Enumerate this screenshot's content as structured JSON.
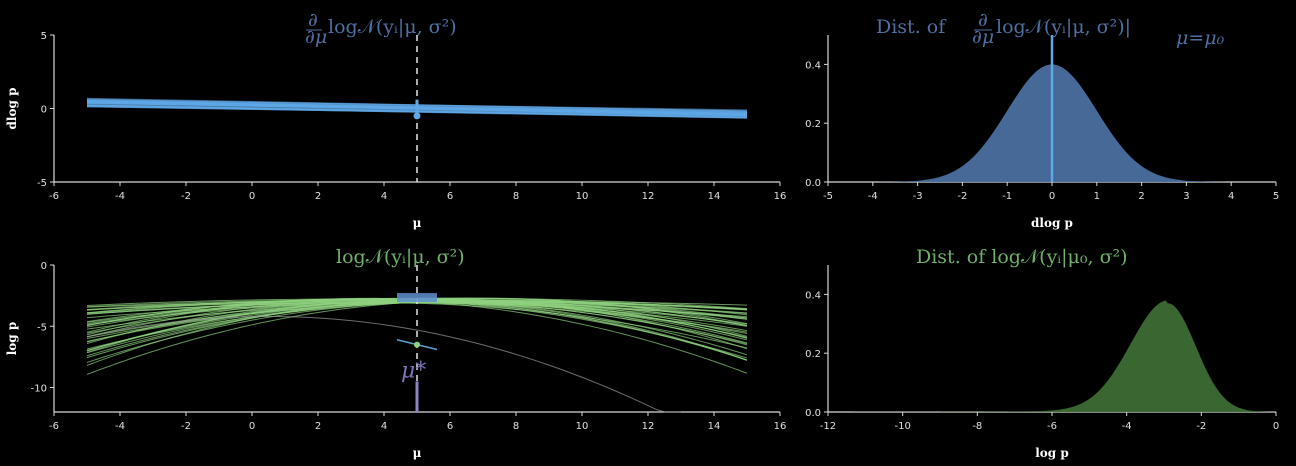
{
  "colors": {
    "background": "#000000",
    "blue": "#4a6fa0",
    "blue_light": "#5fa8e6",
    "green": "#8fd17f",
    "green_fill": "#3d6b34",
    "purple": "#8b84c8"
  },
  "chart_data": [
    {
      "id": "top-left",
      "type": "line",
      "title": "∂/∂μ log 𝒩(yᵢ|μ, σ²)",
      "xlabel": "μ",
      "ylabel": "dlog p",
      "xlim": [
        -6,
        16
      ],
      "ylim": [
        -5,
        5
      ],
      "xticks": [
        -6,
        -4,
        -2,
        0,
        2,
        4,
        6,
        8,
        10,
        12,
        14,
        16
      ],
      "yticks": [
        -5,
        0,
        5
      ],
      "x_range": [
        -5,
        15
      ],
      "lines_intercept_at_mu5": [
        0.15,
        0.0,
        -0.1,
        0.05,
        -0.05
      ],
      "line_slope": -0.04,
      "vertical_marker_x": 5,
      "point": {
        "x": 5,
        "y": -0.5
      }
    },
    {
      "id": "top-right",
      "type": "area",
      "title": "Dist. of ∂/∂μ log 𝒩(yᵢ|μ, σ²)|μ=μ₀",
      "xlabel": "dlog p",
      "ylabel": "",
      "xlim": [
        -5,
        5
      ],
      "ylim": [
        0,
        0.5
      ],
      "xticks": [
        -5,
        -4,
        -3,
        -2,
        -1,
        0,
        1,
        2,
        3,
        4,
        5
      ],
      "yticks": [
        0.0,
        0.2,
        0.4
      ],
      "ytick_labels": [
        "0.0",
        "0.2",
        "0.4"
      ],
      "distribution": {
        "kind": "normal",
        "mean": 0,
        "sd": 1,
        "peak": 0.4
      },
      "vertical_marker_x": 0
    },
    {
      "id": "bottom-left",
      "type": "line",
      "title": "log 𝒩(yᵢ|μ, σ²)",
      "xlabel": "μ",
      "ylabel": "log p",
      "xlim": [
        -6,
        16
      ],
      "ylim": [
        -12,
        0
      ],
      "xticks": [
        -6,
        -4,
        -2,
        0,
        2,
        4,
        6,
        8,
        10,
        12,
        14,
        16
      ],
      "yticks": [
        -10,
        -5,
        0
      ],
      "x_range": [
        -5,
        15
      ],
      "curve_peak_mu": 5,
      "curve_peak_value": -2.7,
      "mu_star_label": "μ*",
      "vertical_marker_x": 5,
      "highlight_point": {
        "x": 5,
        "y": -6.5
      }
    },
    {
      "id": "bottom-right",
      "type": "area",
      "title": "Dist. of log 𝒩(yᵢ|μ₀, σ²)",
      "xlabel": "log p",
      "ylabel": "",
      "xlim": [
        -12,
        0
      ],
      "ylim": [
        0,
        0.5
      ],
      "xticks": [
        -12,
        -10,
        -8,
        -6,
        -4,
        -2,
        0
      ],
      "yticks": [
        0.0,
        0.2,
        0.4
      ],
      "ytick_labels": [
        "0.0",
        "0.2",
        "0.4"
      ],
      "distribution": {
        "kind": "skewed",
        "mode": -2.9,
        "peak": 0.37
      }
    }
  ]
}
